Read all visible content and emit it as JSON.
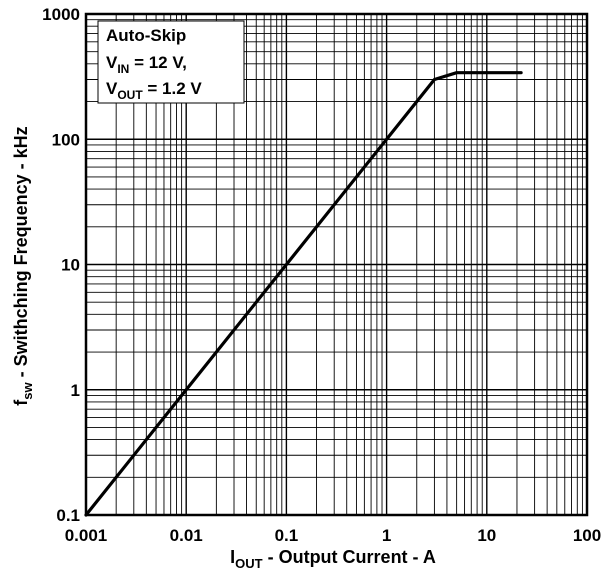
{
  "chart_data": {
    "type": "line",
    "x_scale": "log",
    "y_scale": "log",
    "xlim": [
      0.001,
      100
    ],
    "ylim": [
      0.1,
      1000
    ],
    "grid": true,
    "x_tick_labels": [
      "0.001",
      "0.01",
      "0.1",
      "1",
      "10",
      "100"
    ],
    "y_tick_labels": [
      "0.1",
      "1",
      "10",
      "100",
      "1000"
    ],
    "xlabel": {
      "main": "I",
      "sub": "OUT",
      "rest": " - Output Current - A"
    },
    "ylabel": {
      "main": "f",
      "sub": "sw",
      "rest": " - Swithching Frequency - kHz"
    },
    "legend": {
      "placement": "top-left",
      "line1": "Auto-Skip",
      "line2": {
        "main": "V",
        "sub": "IN",
        "rest": " = 12 V,"
      },
      "line3": {
        "main": "V",
        "sub": "OUT",
        "rest": " = 1.2 V"
      }
    },
    "series": [
      {
        "x": [
          0.001,
          0.01,
          0.1,
          1,
          3,
          5,
          10,
          22
        ],
        "y": [
          0.1,
          1,
          10,
          100,
          300,
          340,
          340,
          340
        ]
      }
    ]
  }
}
